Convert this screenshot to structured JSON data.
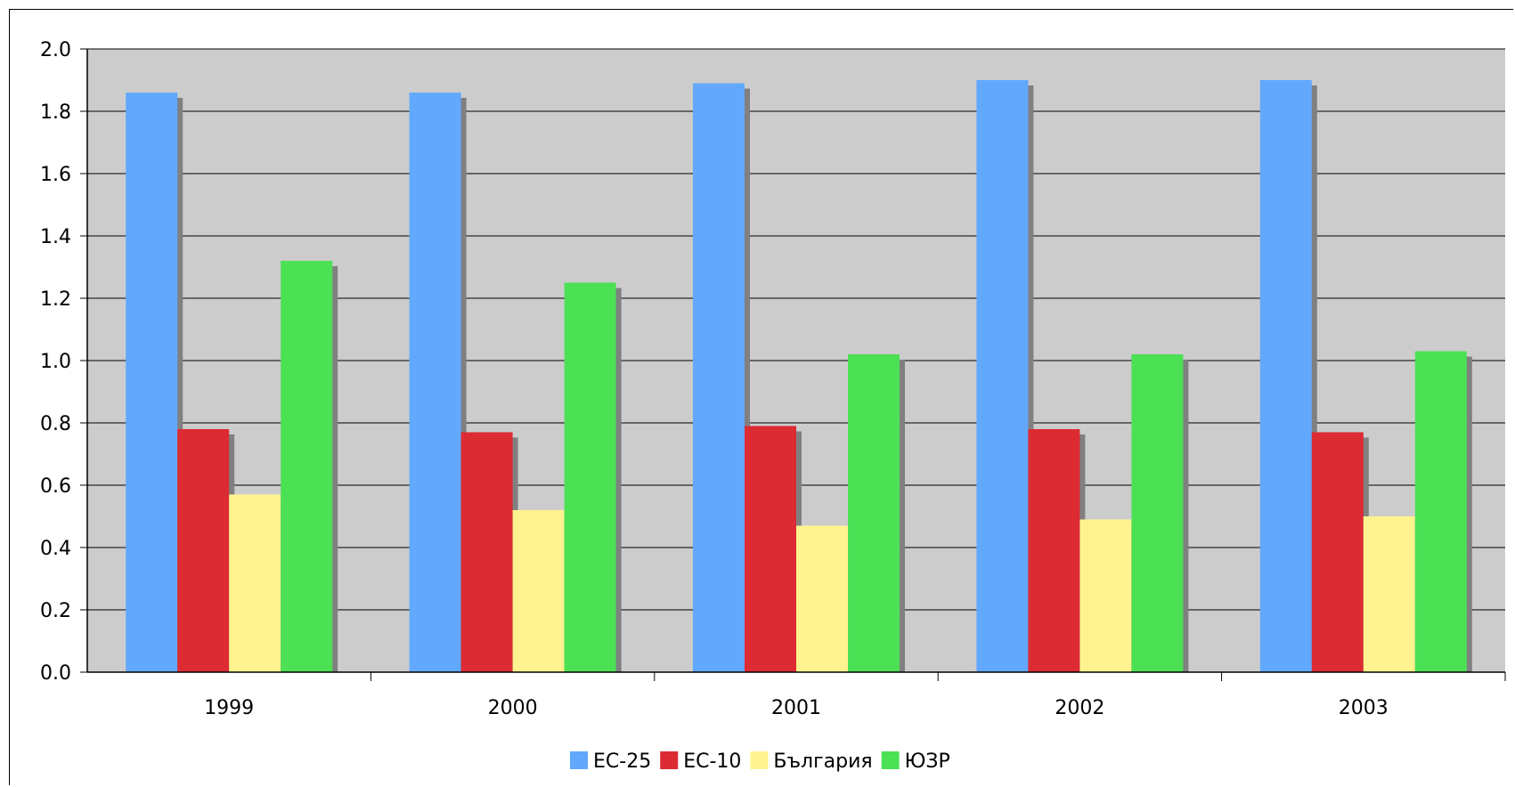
{
  "chart_data": {
    "type": "bar",
    "categories": [
      "1999",
      "2000",
      "2001",
      "2002",
      "2003"
    ],
    "series": [
      {
        "name": "ЕС-25",
        "color": "#62a8fd",
        "values": [
          1.86,
          1.86,
          1.89,
          1.9,
          1.9
        ]
      },
      {
        "name": "ЕС-10",
        "color": "#dd2b33",
        "values": [
          0.78,
          0.77,
          0.79,
          0.78,
          0.77
        ]
      },
      {
        "name": "България",
        "color": "#fff38f",
        "values": [
          0.57,
          0.52,
          0.47,
          0.49,
          0.5
        ]
      },
      {
        "name": "ЮЗР",
        "color": "#4ce055",
        "values": [
          1.32,
          1.25,
          1.02,
          1.02,
          1.03
        ]
      }
    ],
    "ylim": [
      0,
      2.0
    ],
    "yticks": [
      "0.0",
      "0.2",
      "0.4",
      "0.6",
      "0.8",
      "1.0",
      "1.2",
      "1.4",
      "1.6",
      "1.8",
      "2.0"
    ],
    "plot_background": "#cccccc",
    "shadow_color": "#808080",
    "grid": true,
    "legend_position": "bottom"
  }
}
